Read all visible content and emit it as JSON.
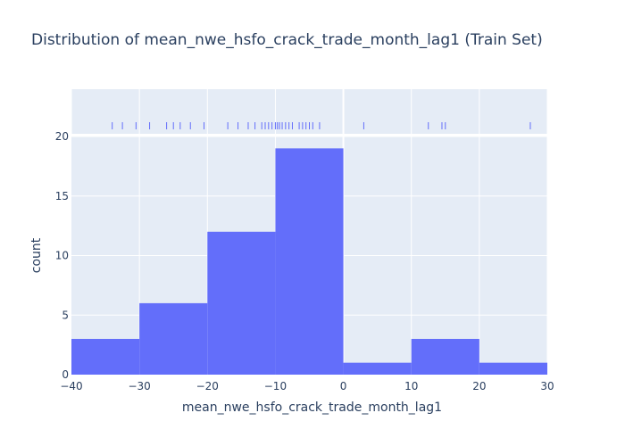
{
  "chart_data": {
    "type": "bar",
    "title": "Distribution of mean_nwe_hsfo_crack_trade_month_lag1 (Train Set)",
    "xlabel": "mean_nwe_hsfo_crack_trade_month_lag1",
    "ylabel": "count",
    "xlim": [
      -40,
      30
    ],
    "ylim": [
      0,
      20
    ],
    "x_ticks": [
      -40,
      -30,
      -20,
      -10,
      0,
      10,
      20,
      30
    ],
    "y_ticks": [
      0,
      5,
      10,
      15,
      20
    ],
    "bin_size": 10,
    "bins": [
      {
        "start": -40,
        "end": -30,
        "count": 3
      },
      {
        "start": -30,
        "end": -20,
        "count": 6
      },
      {
        "start": -20,
        "end": -10,
        "count": 12
      },
      {
        "start": -10,
        "end": 0,
        "count": 19
      },
      {
        "start": 0,
        "end": 10,
        "count": 1
      },
      {
        "start": 10,
        "end": 20,
        "count": 3
      },
      {
        "start": 20,
        "end": 30,
        "count": 1
      }
    ],
    "rug_values": [
      -34,
      -32.5,
      -30.5,
      -28.5,
      -26,
      -25,
      -24,
      -22.5,
      -20.5,
      -17,
      -15.5,
      -14,
      -13,
      -12,
      -11.5,
      -11,
      -10.5,
      -10,
      -9.7,
      -9.4,
      -9,
      -8.5,
      -8,
      -7.5,
      -6.5,
      -6,
      -5.5,
      -5,
      -4.5,
      -3.5,
      3,
      12.5,
      14.5,
      15,
      27.5
    ],
    "grid": true,
    "bar_color": "#636efa",
    "rug_color": "#636efa",
    "plot_bg": "#e5ecf6",
    "text_color": "#2a3f5f"
  }
}
